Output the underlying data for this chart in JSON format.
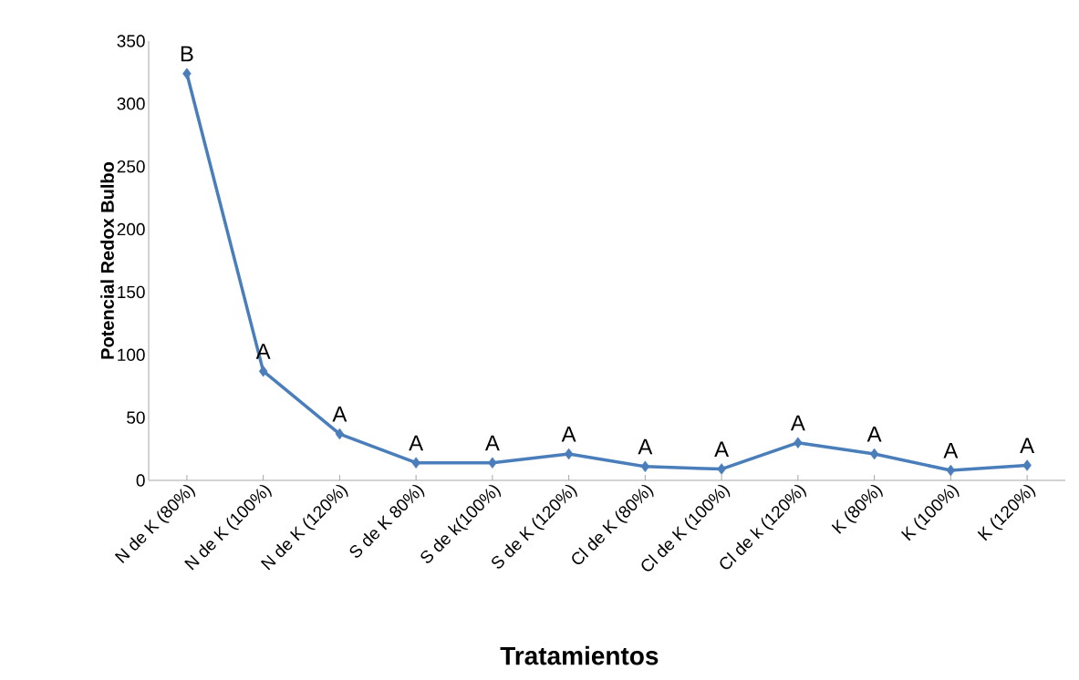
{
  "chart_data": {
    "type": "line",
    "xlabel": "Tratamientos",
    "ylabel": "Potencial Redox Bulbo",
    "categories": [
      "N de K (80%)",
      "N de K (100%)",
      "N de K (120%)",
      "S de K 80%)",
      "S de k(100%)",
      "S de K (120%)",
      "Cl de K (80%)",
      "Cl de K (100%)",
      "Cl de k (120%)",
      "K (80%)",
      "K (100%)",
      "K (120%)"
    ],
    "values": [
      324,
      87,
      37,
      14,
      14,
      21,
      11,
      9,
      30,
      21,
      8,
      12
    ],
    "color": "#4a7ebb",
    "marker": "diamond",
    "line_style": "solid",
    "grid": false,
    "ylim": [
      0,
      350
    ],
    "yticks": [
      0,
      50,
      100,
      150,
      200,
      250,
      300,
      350
    ],
    "annotations": [
      {
        "text": "B",
        "x": "N de K (80%)",
        "y": 324
      },
      {
        "text": "A",
        "x": "N de K (100%)",
        "y": 87
      },
      {
        "text": "A",
        "x": "N de K (120%)",
        "y": 37
      },
      {
        "text": "A",
        "x": "S de K 80%)",
        "y": 14
      },
      {
        "text": "A",
        "x": "S de k(100%)",
        "y": 14
      },
      {
        "text": "A",
        "x": "S de K (120%)",
        "y": 21
      },
      {
        "text": "A",
        "x": "Cl de K (80%)",
        "y": 11
      },
      {
        "text": "A",
        "x": "Cl de K (100%)",
        "y": 9
      },
      {
        "text": "A",
        "x": "Cl de k (120%)",
        "y": 30
      },
      {
        "text": "A",
        "x": "K (80%)",
        "y": 21
      },
      {
        "text": "A",
        "x": "K (100%)",
        "y": 8
      },
      {
        "text": "A",
        "x": "K (120%)",
        "y": 12
      }
    ]
  }
}
